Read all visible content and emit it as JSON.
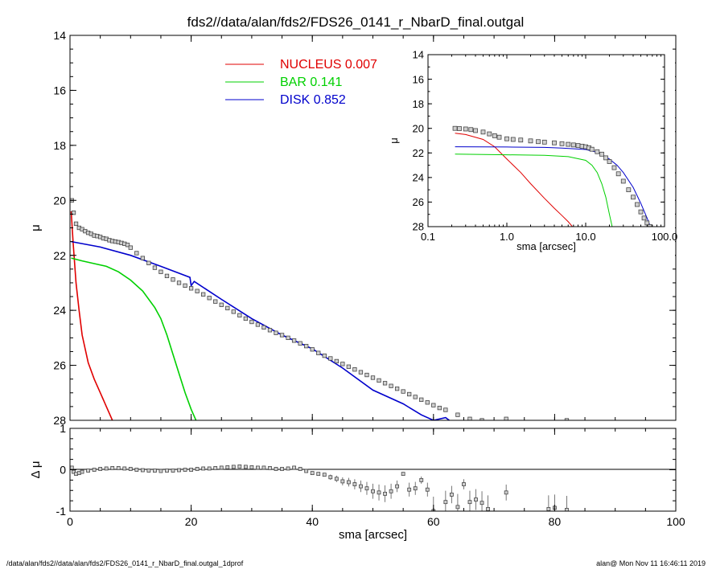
{
  "title": "fds2//data/alan/fds2/FDS26_0141_r_NbarD_final.outgal",
  "footer_left": "/data/alan/fds2//data/alan/fds2/FDS26_0141_r_NbarD_final.outgal_1dprof",
  "footer_right": "alan@  Mon Nov 11 16:46:11 2019",
  "colors": {
    "nucleus": "#e00000",
    "bar": "#00d000",
    "disk": "#0000cc",
    "data": "#555555"
  },
  "legend": [
    {
      "label": "NUCLEUS",
      "value": "0.007",
      "color": "#e00000"
    },
    {
      "label": "BAR",
      "value": "0.141",
      "color": "#00d000"
    },
    {
      "label": "DISK",
      "value": "0.852",
      "color": "#0000cc"
    }
  ],
  "chart_data": [
    {
      "id": "main",
      "type": "scatter",
      "xlabel": "sma [arcsec]",
      "ylabel": "μ",
      "xlim": [
        0,
        100
      ],
      "ylim": [
        28,
        14
      ],
      "x_ticks": [
        0,
        20,
        40,
        60,
        80,
        100
      ],
      "y_ticks": [
        14,
        16,
        18,
        20,
        22,
        24,
        26,
        28
      ],
      "data_points": {
        "x": [
          0.3,
          0.6,
          1,
          1.5,
          2,
          2.5,
          3,
          3.5,
          4,
          4.5,
          5,
          5.5,
          6,
          6.5,
          7,
          7.5,
          8,
          8.5,
          9,
          9.5,
          10,
          11,
          12,
          13,
          14,
          15,
          16,
          17,
          18,
          19,
          20,
          21,
          22,
          23,
          24,
          25,
          26,
          27,
          28,
          29,
          30,
          31,
          32,
          33,
          34,
          35,
          36,
          37,
          38,
          39,
          40,
          41,
          42,
          43,
          44,
          45,
          46,
          47,
          48,
          49,
          50,
          51,
          52,
          53,
          54,
          55,
          56,
          57,
          58,
          59,
          60,
          61,
          62,
          64,
          66,
          68,
          70,
          72,
          75,
          78,
          80,
          82
        ],
        "y": [
          20.0,
          20.45,
          20.85,
          21.0,
          21.05,
          21.12,
          21.18,
          21.22,
          21.28,
          21.3,
          21.33,
          21.38,
          21.4,
          21.45,
          21.48,
          21.5,
          21.52,
          21.55,
          21.58,
          21.62,
          21.72,
          21.92,
          22.1,
          22.28,
          22.45,
          22.6,
          22.75,
          22.88,
          23.0,
          23.1,
          23.2,
          23.3,
          23.42,
          23.55,
          23.68,
          23.8,
          23.92,
          24.05,
          24.18,
          24.3,
          24.42,
          24.52,
          24.62,
          24.72,
          24.82,
          24.9,
          25.0,
          25.1,
          25.2,
          25.3,
          25.42,
          25.55,
          25.65,
          25.75,
          25.85,
          25.95,
          26.05,
          26.15,
          26.25,
          26.35,
          26.45,
          26.55,
          26.65,
          26.75,
          26.85,
          26.95,
          27.05,
          27.15,
          27.25,
          27.35,
          27.45,
          27.55,
          27.62,
          27.8,
          27.95,
          28.0,
          28.2,
          27.95,
          28.4,
          28.5,
          28.6,
          28.0
        ]
      },
      "series": [
        {
          "name": "NUCLEUS",
          "x": [
            0.2,
            0.5,
            1,
            1.5,
            2,
            3,
            4,
            5,
            6,
            7
          ],
          "y": [
            20.4,
            21.5,
            23.0,
            24.0,
            24.9,
            25.9,
            26.5,
            27.0,
            27.5,
            28.0
          ]
        },
        {
          "name": "BAR",
          "x": [
            0.2,
            2,
            4,
            6,
            8,
            10,
            12,
            14,
            15,
            16,
            17,
            18,
            19,
            20,
            21
          ],
          "y": [
            22.1,
            22.2,
            22.3,
            22.4,
            22.6,
            22.9,
            23.3,
            23.9,
            24.3,
            24.9,
            25.6,
            26.3,
            27.0,
            27.6,
            28.1
          ]
        },
        {
          "name": "DISK",
          "x": [
            0.2,
            5,
            10,
            15,
            19.8,
            20,
            20.5,
            25,
            30,
            35,
            40,
            45,
            50,
            55,
            58,
            60,
            62,
            65
          ],
          "y": [
            21.5,
            21.7,
            22.0,
            22.4,
            22.8,
            23.1,
            22.95,
            23.6,
            24.3,
            24.9,
            25.4,
            26.1,
            26.9,
            27.4,
            27.8,
            28.0,
            27.9,
            28.4
          ]
        }
      ]
    },
    {
      "id": "residual",
      "type": "scatter",
      "xlabel": "sma [arcsec]",
      "ylabel": "Δ μ",
      "xlim": [
        0,
        100
      ],
      "ylim": [
        -1,
        1
      ],
      "x_ticks": [
        0,
        20,
        40,
        60,
        80,
        100
      ],
      "y_ticks": [
        -1,
        0,
        1
      ],
      "data_points": {
        "x": [
          0.3,
          0.6,
          1,
          1.5,
          2,
          3,
          4,
          5,
          6,
          7,
          8,
          9,
          10,
          11,
          12,
          13,
          14,
          15,
          16,
          17,
          18,
          19,
          20,
          21,
          22,
          23,
          24,
          25,
          26,
          27,
          28,
          29,
          30,
          31,
          32,
          33,
          34,
          35,
          36,
          37,
          38,
          39,
          40,
          41,
          42,
          43,
          44,
          45,
          46,
          47,
          48,
          49,
          50,
          51,
          52,
          53,
          54,
          55,
          56,
          57,
          58,
          59,
          60,
          62,
          63,
          64,
          65,
          66,
          67,
          68,
          69,
          72,
          79,
          80,
          82
        ],
        "y": [
          0.05,
          -0.05,
          -0.1,
          -0.08,
          -0.05,
          -0.02,
          0,
          0.02,
          0.03,
          0.04,
          0.04,
          0.03,
          0.02,
          0,
          -0.01,
          -0.02,
          -0.02,
          -0.03,
          -0.02,
          -0.02,
          -0.01,
          0,
          0,
          0.02,
          0.03,
          0.03,
          0.04,
          0.05,
          0.06,
          0.07,
          0.08,
          0.07,
          0.06,
          0.05,
          0.05,
          0.04,
          0.02,
          0.02,
          0.03,
          0.05,
          0.02,
          -0.03,
          -0.08,
          -0.1,
          -0.12,
          -0.18,
          -0.22,
          -0.28,
          -0.3,
          -0.35,
          -0.4,
          -0.45,
          -0.52,
          -0.55,
          -0.58,
          -0.52,
          -0.4,
          -0.1,
          -0.48,
          -0.45,
          -0.25,
          -0.48,
          -1.0,
          -0.78,
          -0.6,
          -0.9,
          -0.35,
          -0.78,
          -0.72,
          -0.8,
          -0.95,
          -0.55,
          -0.95,
          -0.92,
          -0.97
        ]
      },
      "series": []
    },
    {
      "id": "inset",
      "type": "scatter",
      "xlabel": "sma [arcsec]",
      "ylabel": "μ",
      "xscale": "log",
      "xlim": [
        0.1,
        100
      ],
      "ylim": [
        28,
        14
      ],
      "x_ticks": [
        0.1,
        1,
        10,
        100
      ],
      "x_tick_labels": [
        "0.1",
        "1.0",
        "10.0",
        "100.0"
      ],
      "y_ticks": [
        14,
        16,
        18,
        20,
        22,
        24,
        26,
        28
      ],
      "data_points": {
        "x": [
          0.22,
          0.25,
          0.3,
          0.35,
          0.4,
          0.5,
          0.6,
          0.7,
          0.8,
          1,
          1.2,
          1.5,
          2,
          2.5,
          3,
          4,
          5,
          6,
          7,
          8,
          9,
          10,
          11,
          12,
          14,
          16,
          18,
          20,
          23,
          26,
          30,
          35,
          40,
          45,
          50,
          55,
          60,
          65,
          70,
          75
        ],
        "y": [
          20.0,
          20.02,
          20.05,
          20.1,
          20.18,
          20.3,
          20.45,
          20.6,
          20.72,
          20.85,
          20.9,
          20.95,
          21.02,
          21.08,
          21.12,
          21.18,
          21.25,
          21.3,
          21.35,
          21.4,
          21.45,
          21.5,
          21.58,
          21.7,
          21.9,
          22.1,
          22.4,
          22.7,
          23.2,
          23.7,
          24.3,
          25.0,
          25.6,
          26.2,
          26.8,
          27.3,
          27.7,
          28.0,
          28.2,
          28.5
        ]
      },
      "series": [
        {
          "name": "NUCLEUS",
          "x": [
            0.22,
            0.3,
            0.5,
            0.7,
            1,
            1.5,
            2,
            3,
            4,
            5,
            6,
            7
          ],
          "y": [
            20.4,
            20.5,
            20.9,
            21.5,
            22.5,
            23.6,
            24.5,
            25.7,
            26.5,
            27.1,
            27.6,
            28.1
          ]
        },
        {
          "name": "BAR",
          "x": [
            0.22,
            1,
            3,
            6,
            10,
            12,
            14,
            16,
            18,
            20,
            22
          ],
          "y": [
            22.1,
            22.15,
            22.2,
            22.3,
            22.6,
            23.0,
            23.6,
            24.5,
            25.6,
            27.0,
            28.2
          ]
        },
        {
          "name": "DISK",
          "x": [
            0.22,
            1,
            3,
            5,
            10,
            15,
            20,
            25,
            30,
            40,
            50,
            60,
            70
          ],
          "y": [
            21.5,
            21.52,
            21.55,
            21.6,
            21.72,
            22.0,
            22.5,
            23.0,
            23.6,
            24.8,
            26.1,
            27.3,
            28.4
          ]
        }
      ]
    }
  ]
}
